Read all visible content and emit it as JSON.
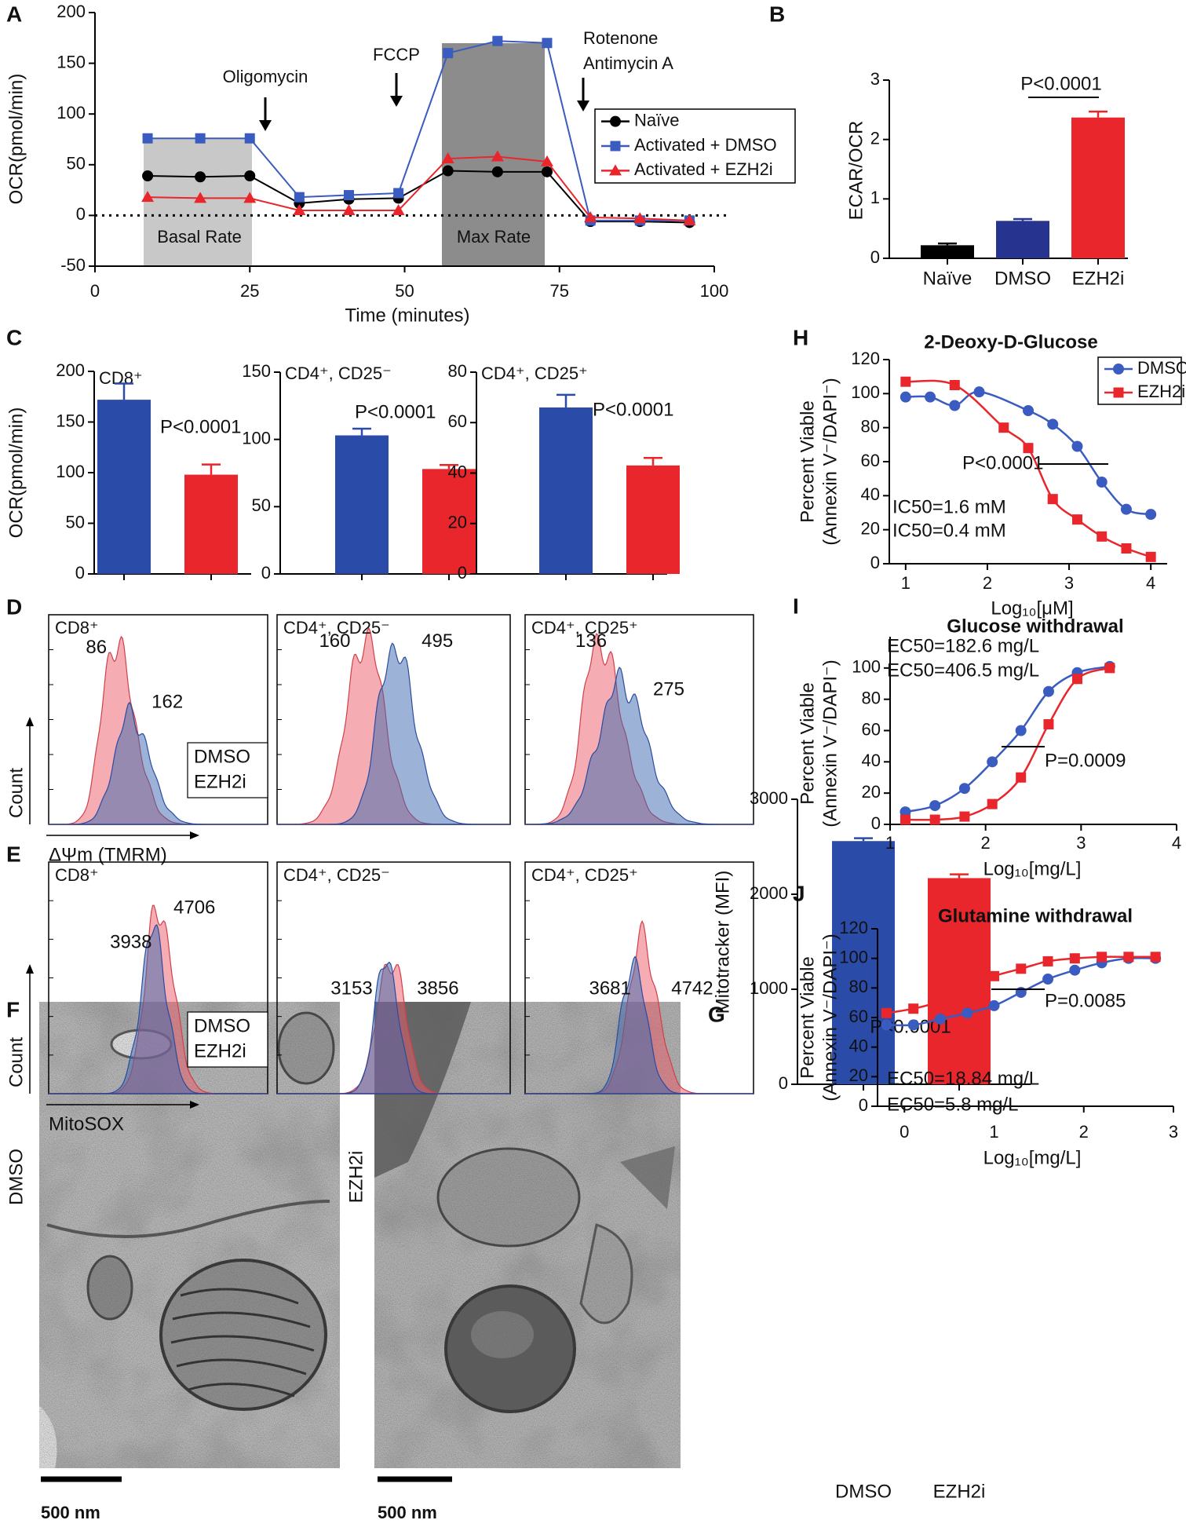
{
  "panel_labels": [
    "A",
    "B",
    "C",
    "D",
    "E",
    "F",
    "G",
    "H",
    "I",
    "J"
  ],
  "chart_data": [
    {
      "type": "line",
      "x": [
        8.5,
        17,
        25,
        33,
        41,
        49,
        57,
        65,
        73,
        80,
        88,
        96
      ],
      "series": [
        {
          "name": "Naïve",
          "color": "#000000",
          "marker": "circle",
          "values": [
            39,
            38,
            39,
            12,
            16,
            17,
            44,
            43,
            43,
            -6,
            -6,
            -7
          ]
        },
        {
          "name": "Activated + DMSO",
          "color": "#3a5bbf",
          "marker": "square",
          "values": [
            76,
            76,
            76,
            18,
            20,
            22,
            160,
            172,
            170,
            -5,
            -5,
            -5
          ]
        },
        {
          "name": "Activated + EZH2i",
          "color": "#e8262b",
          "marker": "triangle",
          "values": [
            18,
            17,
            17,
            5,
            5,
            5,
            56,
            58,
            53,
            -2,
            -3,
            -5
          ]
        }
      ],
      "x_label": "Time (minutes)",
      "y_label": "OCR(pmol/min)",
      "xlim": [
        0,
        100
      ],
      "xticks": [
        0,
        25,
        50,
        75,
        100
      ],
      "ylim": [
        -50,
        200
      ],
      "yticks": [
        -50,
        0,
        50,
        100,
        150,
        200
      ],
      "zero_line": "dotted",
      "legend": "upper right",
      "connect": "straight",
      "annotations": [
        "Oligomycin",
        "FCCP",
        "Rotenone",
        "Antimycin A",
        "Basal Rate",
        "Max Rate"
      ]
    },
    {
      "type": "bar",
      "categories": [
        "Naïve",
        "DMSO",
        "EZH2i"
      ],
      "values": [
        0.22,
        0.63,
        2.37
      ],
      "errors": [
        0.03,
        0.03,
        0.1
      ],
      "colors": [
        "#000000",
        "#26348f",
        "#e8262b"
      ],
      "y_label": "ECAR/OCR",
      "ylim": [
        0,
        3
      ],
      "yticks": [
        0,
        1,
        2,
        3
      ],
      "annotations": [
        "P<0.0001"
      ]
    },
    {
      "type": "bar",
      "title": "CD8⁺",
      "categories": [
        null,
        null
      ],
      "values": [
        172,
        98
      ],
      "errors": [
        16,
        10
      ],
      "colors": [
        "#2b4ba8",
        "#e8262b"
      ],
      "y_label": "OCR(pmol/min)",
      "ylim": [
        0,
        200
      ],
      "yticks": [
        0,
        50,
        100,
        150,
        200
      ],
      "annotations": [
        "P<0.0001"
      ]
    },
    {
      "type": "bar",
      "title": "CD4⁺, CD25⁻",
      "categories": [
        null,
        null
      ],
      "values": [
        103,
        78
      ],
      "errors": [
        5,
        3
      ],
      "colors": [
        "#2b4ba8",
        "#e8262b"
      ],
      "ylim": [
        0,
        150
      ],
      "yticks": [
        0,
        50,
        100,
        150
      ],
      "annotations": [
        "P<0.0001"
      ]
    },
    {
      "type": "bar",
      "title": "CD4⁺, CD25⁺",
      "categories": [
        null,
        null
      ],
      "values": [
        66,
        43
      ],
      "errors": [
        5,
        3
      ],
      "colors": [
        "#2b4ba8",
        "#e8262b"
      ],
      "ylim": [
        0,
        80
      ],
      "yticks": [
        0,
        20,
        40,
        60,
        80
      ],
      "annotations": [
        "P<0.0001"
      ]
    },
    {
      "type": "bar",
      "categories": [
        "DMSO",
        "EZH2i"
      ],
      "values": [
        2560,
        2170
      ],
      "errors": [
        30,
        40
      ],
      "colors": [
        "#2b4ba8",
        "#e8262b"
      ],
      "y_label": "Mitotracker (MFI)",
      "ylim": [
        0,
        3000
      ],
      "yticks": [
        0,
        1000,
        2000,
        3000
      ],
      "annotations": [
        "P<0.0001"
      ]
    },
    {
      "type": "scatter",
      "title": "2-Deoxy-D-Glucose",
      "series": [
        {
          "name": "DMSO",
          "color": "#3a5bbf",
          "marker": "circle",
          "x": [
            1,
            1.3,
            1.6,
            1.9,
            2.5,
            2.8,
            3.1,
            3.4,
            3.7,
            4.0
          ],
          "values": [
            98,
            98,
            93,
            101,
            90,
            82,
            69,
            48,
            32,
            29
          ]
        },
        {
          "name": "EZH2i",
          "color": "#e8262b",
          "marker": "square",
          "x": [
            1,
            1.6,
            2.2,
            2.5,
            2.8,
            3.1,
            3.4,
            3.7,
            4.0
          ],
          "values": [
            107,
            105,
            80,
            68,
            38,
            26,
            16,
            9,
            4
          ]
        }
      ],
      "x_label": "Log₁₀[μM]",
      "y_label": [
        "Percent Viable",
        "(Annexin V⁻/DAPI⁻)"
      ],
      "xlim": [
        0.8,
        4.2
      ],
      "xticks": [
        1,
        2,
        3,
        4
      ],
      "ylim": [
        0,
        120
      ],
      "yticks": [
        0,
        20,
        40,
        60,
        80,
        100,
        120
      ],
      "legend": "upper right",
      "connect": "smooth",
      "annotations": [
        {
          "text": "P<0.0001",
          "color": "#000000"
        },
        {
          "text": "IC50=1.6 mM",
          "color": "#3a5bbf"
        },
        {
          "text": "IC50=0.4 mM",
          "color": "#e8262b"
        }
      ]
    },
    {
      "type": "scatter",
      "title": "Glucose withdrawal",
      "series": [
        {
          "color": "#3a5bbf",
          "marker": "circle",
          "x": [
            1.16,
            1.47,
            1.78,
            2.07,
            2.37,
            2.66,
            2.96,
            3.3
          ],
          "values": [
            8,
            12,
            23,
            40,
            60,
            85,
            97,
            101
          ]
        },
        {
          "color": "#e8262b",
          "marker": "square",
          "x": [
            1.16,
            1.47,
            1.78,
            2.07,
            2.37,
            2.66,
            2.96,
            3.3
          ],
          "values": [
            3,
            3,
            5,
            13,
            30,
            64,
            93,
            100
          ]
        }
      ],
      "x_label": "Log₁₀[mg/L]",
      "y_label": [
        "Percent Viable",
        "(Annexin V⁻/DAPI⁻)"
      ],
      "xlim": [
        1,
        4
      ],
      "xticks": [
        1,
        2,
        3,
        4
      ],
      "ylim": [
        0,
        120
      ],
      "yticks": [
        0,
        20,
        40,
        60,
        80,
        100
      ],
      "connect": "smooth",
      "annotations": [
        {
          "text": "P=0.0009",
          "color": "#000000"
        },
        {
          "text": "EC50=182.6 mg/L",
          "color": "#3a5bbf"
        },
        {
          "text": "EC50=406.5 mg/L",
          "color": "#e8262b"
        }
      ]
    },
    {
      "type": "scatter",
      "title": "Glutamine withdrawal",
      "series": [
        {
          "color": "#3a5bbf",
          "marker": "circle",
          "x": [
            -0.2,
            0.1,
            0.4,
            0.7,
            1.0,
            1.3,
            1.6,
            1.9,
            2.2,
            2.5,
            2.8
          ],
          "values": [
            55,
            55,
            59,
            63,
            68,
            77,
            86,
            92,
            97,
            100,
            100
          ]
        },
        {
          "color": "#e8262b",
          "marker": "square",
          "x": [
            -0.2,
            0.1,
            0.4,
            0.7,
            1.0,
            1.3,
            1.6,
            1.9,
            2.2,
            2.5,
            2.8
          ],
          "values": [
            63,
            66,
            71,
            80,
            88,
            93,
            98,
            100,
            101,
            101,
            101
          ]
        }
      ],
      "x_label": "Log₁₀[mg/L]",
      "y_label": [
        "Percent Viable",
        "(Annexin V⁻/DAPI⁻)"
      ],
      "xlim": [
        -0.3,
        3
      ],
      "xticks": [
        0,
        1,
        2,
        3
      ],
      "ylim": [
        0,
        120
      ],
      "yticks": [
        0,
        20,
        40,
        60,
        80,
        100,
        120
      ],
      "connect": "smooth",
      "annotations": [
        {
          "text": "P=0.0085",
          "color": "#000000"
        },
        {
          "text": "EC50=18.84 mg/L",
          "color": "#3a5bbf"
        },
        {
          "text": "EC50=5.8 mg/L",
          "color": "#e8262b"
        }
      ]
    }
  ],
  "flow": {
    "D": {
      "x_label": "ΔΨm (TMRM)",
      "y_label": "Count",
      "legend": [
        {
          "name": "DMSO",
          "color": "#2b46a0"
        },
        {
          "name": "EZH2i",
          "color": "#c0303a"
        }
      ],
      "plots": [
        {
          "title": "CD8⁺",
          "values": [
            162,
            86
          ]
        },
        {
          "title": "CD4⁺, CD25⁻",
          "values": [
            495,
            160
          ]
        },
        {
          "title": "CD4⁺, CD25⁺",
          "values": [
            275,
            136
          ]
        }
      ]
    },
    "E": {
      "x_label": "MitoSOX",
      "y_label": "Count",
      "legend": [
        {
          "name": "DMSO",
          "color": "#2b46a0"
        },
        {
          "name": "EZH2i",
          "color": "#c0303a"
        }
      ],
      "plots": [
        {
          "title": "CD8⁺",
          "values": [
            3938,
            4706
          ]
        },
        {
          "title": "CD4⁺, CD25⁻",
          "values": [
            3153,
            3856
          ]
        },
        {
          "title": "CD4⁺, CD25⁺",
          "values": [
            3681,
            4742
          ]
        }
      ]
    }
  },
  "em": {
    "images": [
      {
        "label": "DMSO",
        "scale_bar": "500 nm"
      },
      {
        "label": "EZH2i",
        "scale_bar": "500 nm"
      }
    ]
  }
}
